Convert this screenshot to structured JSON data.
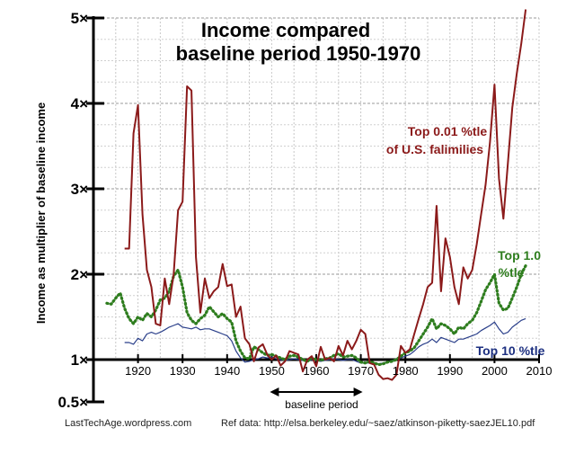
{
  "chart_data": {
    "type": "line",
    "title_lines": [
      "Income compared",
      "baseline period 1950-1970"
    ],
    "ylabel": "Income as multiplier of baseline income",
    "xlabel": "",
    "xlim": [
      1910,
      2010
    ],
    "ylim": [
      0.5,
      5
    ],
    "grid": true,
    "x_ticks": [
      {
        "v": 1920,
        "label": "1920"
      },
      {
        "v": 1930,
        "label": "1930"
      },
      {
        "v": 1940,
        "label": "1940"
      },
      {
        "v": 1950,
        "label": "1950"
      },
      {
        "v": 1960,
        "label": "1960"
      },
      {
        "v": 1970,
        "label": "1970"
      },
      {
        "v": 1980,
        "label": "1980"
      },
      {
        "v": 1990,
        "label": "1990"
      },
      {
        "v": 2000,
        "label": "2000"
      },
      {
        "v": 2010,
        "label": "2010"
      }
    ],
    "y_ticks": [
      {
        "v": 0.5,
        "label": "0.5×"
      },
      {
        "v": 1,
        "label": "1×"
      },
      {
        "v": 2,
        "label": "2×"
      },
      {
        "v": 3,
        "label": "3×"
      },
      {
        "v": 4,
        "label": "4×"
      },
      {
        "v": 5,
        "label": "5×"
      }
    ],
    "series": [
      {
        "name": "Top 10 %tle",
        "color": "#2a3f8a",
        "style": "solid",
        "x": [
          1917,
          1918,
          1919,
          1920,
          1921,
          1922,
          1923,
          1924,
          1925,
          1926,
          1927,
          1928,
          1929,
          1930,
          1931,
          1932,
          1933,
          1934,
          1935,
          1936,
          1937,
          1938,
          1939,
          1940,
          1941,
          1942,
          1943,
          1944,
          1945,
          1946,
          1947,
          1948,
          1949,
          1950,
          1951,
          1952,
          1953,
          1954,
          1955,
          1956,
          1957,
          1958,
          1959,
          1960,
          1961,
          1962,
          1963,
          1964,
          1965,
          1966,
          1967,
          1968,
          1969,
          1970,
          1971,
          1972,
          1973,
          1974,
          1975,
          1976,
          1977,
          1978,
          1979,
          1980,
          1981,
          1982,
          1983,
          1984,
          1985,
          1986,
          1987,
          1988,
          1989,
          1990,
          1991,
          1992,
          1993,
          1994,
          1995,
          1996,
          1997,
          1998,
          1999,
          2000,
          2001,
          2002,
          2003,
          2004,
          2005,
          2006,
          2007
        ],
        "y": [
          1.2,
          1.2,
          1.18,
          1.25,
          1.22,
          1.3,
          1.32,
          1.3,
          1.32,
          1.35,
          1.38,
          1.4,
          1.42,
          1.38,
          1.37,
          1.36,
          1.38,
          1.35,
          1.36,
          1.36,
          1.34,
          1.32,
          1.3,
          1.28,
          1.22,
          1.1,
          1.02,
          0.97,
          0.98,
          1.0,
          1.01,
          1.03,
          1.02,
          1.03,
          1.01,
          1.0,
          0.99,
          1.0,
          1.01,
          1.0,
          0.99,
          0.98,
          1.0,
          0.99,
          0.98,
          0.99,
          1.0,
          1.01,
          1.0,
          0.99,
          1.0,
          1.0,
          0.98,
          0.96,
          0.96,
          0.96,
          0.96,
          0.95,
          0.96,
          0.97,
          0.99,
          1.0,
          1.02,
          1.04,
          1.06,
          1.1,
          1.15,
          1.18,
          1.2,
          1.24,
          1.2,
          1.26,
          1.24,
          1.22,
          1.2,
          1.24,
          1.24,
          1.26,
          1.28,
          1.3,
          1.34,
          1.37,
          1.4,
          1.44,
          1.36,
          1.3,
          1.32,
          1.38,
          1.42,
          1.46,
          1.48
        ]
      },
      {
        "name": "Top 1.0 %tle",
        "color": "#2e7d1e",
        "style": "dotted",
        "x": [
          1913,
          1914,
          1915,
          1916,
          1917,
          1918,
          1919,
          1920,
          1921,
          1922,
          1923,
          1924,
          1925,
          1926,
          1927,
          1928,
          1929,
          1930,
          1931,
          1932,
          1933,
          1934,
          1935,
          1936,
          1937,
          1938,
          1939,
          1940,
          1941,
          1942,
          1943,
          1944,
          1945,
          1946,
          1947,
          1948,
          1949,
          1950,
          1951,
          1952,
          1953,
          1954,
          1955,
          1956,
          1957,
          1958,
          1959,
          1960,
          1961,
          1962,
          1963,
          1964,
          1965,
          1966,
          1967,
          1968,
          1969,
          1970,
          1971,
          1972,
          1973,
          1974,
          1975,
          1976,
          1977,
          1978,
          1979,
          1980,
          1981,
          1982,
          1983,
          1984,
          1985,
          1986,
          1987,
          1988,
          1989,
          1990,
          1991,
          1992,
          1993,
          1994,
          1995,
          1996,
          1997,
          1998,
          1999,
          2000,
          2001,
          2002,
          2003,
          2004,
          2005,
          2006,
          2007
        ],
        "y": [
          1.66,
          1.65,
          1.72,
          1.78,
          1.6,
          1.48,
          1.42,
          1.5,
          1.46,
          1.54,
          1.5,
          1.58,
          1.7,
          1.72,
          1.8,
          1.98,
          2.05,
          1.85,
          1.55,
          1.46,
          1.42,
          1.48,
          1.52,
          1.62,
          1.56,
          1.5,
          1.54,
          1.48,
          1.44,
          1.22,
          1.1,
          1.02,
          1.01,
          1.15,
          1.12,
          1.08,
          1.05,
          1.06,
          1.04,
          1.02,
          1.0,
          1.04,
          1.05,
          1.03,
          1.0,
          0.98,
          1.02,
          1.0,
          0.99,
          1.01,
          1.02,
          1.05,
          1.07,
          1.03,
          1.04,
          1.05,
          1.02,
          0.97,
          0.96,
          0.98,
          0.96,
          0.94,
          0.95,
          0.97,
          0.98,
          1.0,
          1.04,
          1.08,
          1.1,
          1.14,
          1.22,
          1.3,
          1.38,
          1.48,
          1.36,
          1.42,
          1.4,
          1.36,
          1.3,
          1.38,
          1.36,
          1.42,
          1.46,
          1.55,
          1.68,
          1.82,
          1.9,
          2.0,
          1.66,
          1.58,
          1.6,
          1.72,
          1.85,
          2.0,
          2.1
        ]
      },
      {
        "name": "Top 0.01 %tle of U.S. falimilies",
        "color": "#8b1a1a",
        "style": "solid",
        "x": [
          1917,
          1918,
          1919,
          1920,
          1921,
          1922,
          1923,
          1924,
          1925,
          1926,
          1927,
          1928,
          1929,
          1930,
          1931,
          1932,
          1933,
          1934,
          1935,
          1936,
          1937,
          1938,
          1939,
          1940,
          1941,
          1942,
          1943,
          1944,
          1945,
          1946,
          1947,
          1948,
          1949,
          1950,
          1951,
          1952,
          1953,
          1954,
          1955,
          1956,
          1957,
          1958,
          1959,
          1960,
          1961,
          1962,
          1963,
          1964,
          1965,
          1966,
          1967,
          1968,
          1969,
          1970,
          1971,
          1972,
          1973,
          1974,
          1975,
          1976,
          1977,
          1978,
          1979,
          1980,
          1981,
          1982,
          1983,
          1984,
          1985,
          1986,
          1987,
          1988,
          1989,
          1990,
          1991,
          1992,
          1993,
          1994,
          1995,
          1996,
          1997,
          1998,
          1999,
          2000,
          2001,
          2002,
          2003,
          2004,
          2005,
          2006,
          2007
        ],
        "y": [
          2.3,
          2.3,
          3.65,
          3.98,
          2.7,
          2.05,
          1.85,
          1.42,
          1.4,
          1.95,
          1.65,
          2.0,
          2.75,
          2.85,
          4.2,
          4.15,
          2.2,
          1.55,
          1.95,
          1.72,
          1.8,
          1.85,
          2.12,
          1.86,
          1.88,
          1.5,
          1.62,
          1.25,
          1.18,
          0.98,
          1.14,
          1.18,
          1.06,
          1.0,
          1.05,
          0.93,
          0.98,
          1.1,
          1.08,
          1.06,
          0.86,
          1.0,
          1.04,
          0.92,
          1.15,
          1.0,
          1.02,
          0.98,
          1.16,
          1.05,
          1.22,
          1.12,
          1.22,
          1.35,
          1.3,
          0.96,
          0.94,
          0.82,
          0.77,
          0.78,
          0.76,
          0.82,
          1.16,
          1.08,
          1.12,
          1.3,
          1.48,
          1.65,
          1.85,
          1.9,
          2.8,
          1.8,
          2.42,
          2.2,
          1.85,
          1.65,
          2.08,
          1.95,
          2.05,
          2.35,
          2.7,
          3.05,
          3.55,
          4.22,
          3.12,
          2.65,
          3.3,
          3.95,
          4.35,
          4.7,
          5.1
        ]
      }
    ],
    "annotations": {
      "top001_line1": "Top 0.01 %tle",
      "top001_line2": "of U.S. falimilies",
      "top1_line1": "Top 1.0",
      "top1_line2": "%tle",
      "top10": "Top 10 %tle",
      "baseline_label": "baseline period",
      "baseline_range": [
        1950,
        1970
      ]
    },
    "footer_left": "LastTechAge.wordpress.com",
    "footer_right": "Ref data:  http://elsa.berkeley.edu/~saez/atkinson-piketty-saezJEL10.pdf"
  }
}
